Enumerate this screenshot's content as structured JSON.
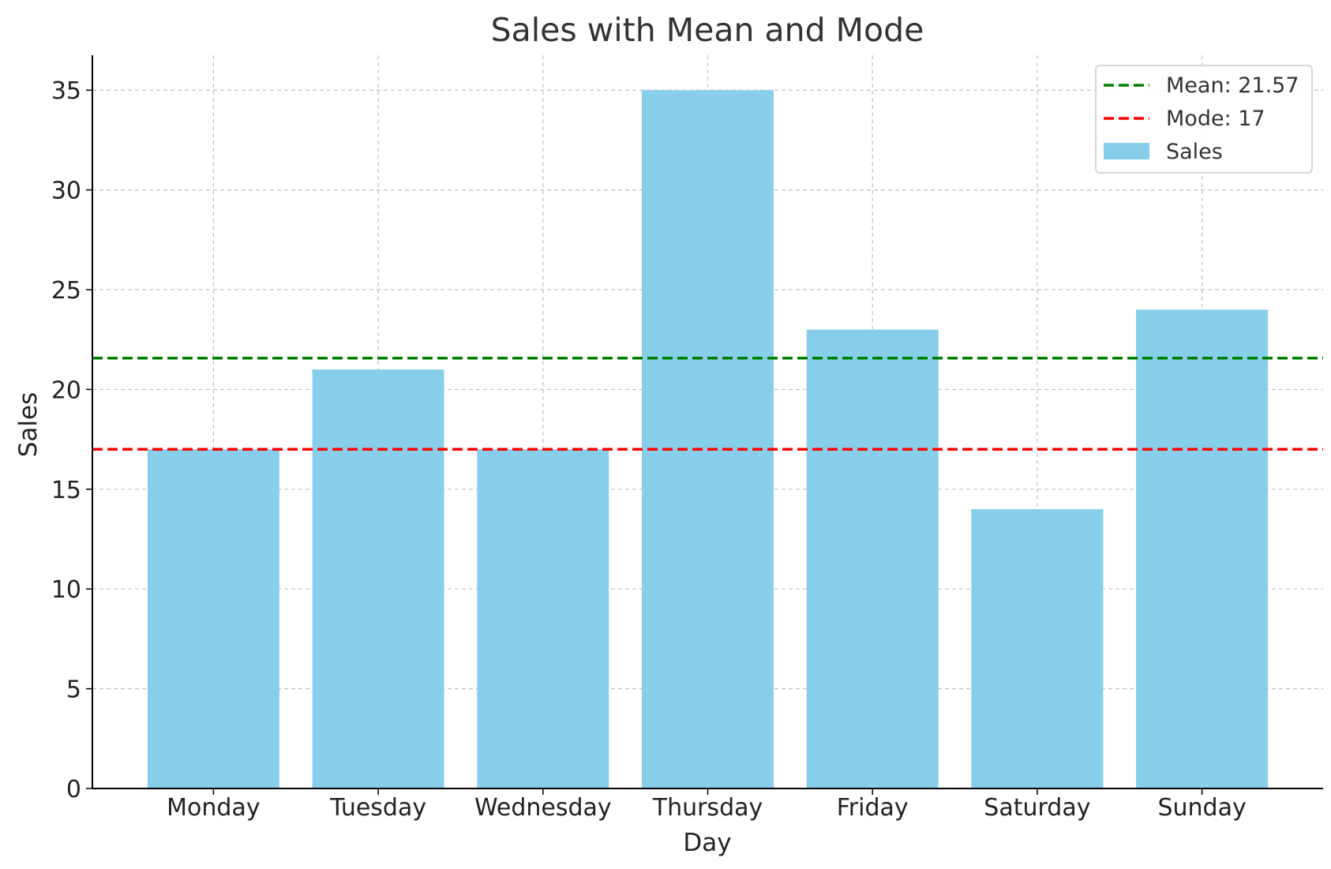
{
  "chart_data": {
    "type": "bar",
    "title": "Sales with Mean and Mode",
    "xlabel": "Day",
    "ylabel": "Sales",
    "categories": [
      "Monday",
      "Tuesday",
      "Wednesday",
      "Thursday",
      "Friday",
      "Saturday",
      "Sunday"
    ],
    "series": [
      {
        "name": "Sales",
        "values": [
          17,
          21,
          17,
          35,
          23,
          14,
          24
        ],
        "color": "#87CEEB"
      }
    ],
    "reference_lines": [
      {
        "label": "Mean: 21.57",
        "value": 21.57,
        "color": "#008000",
        "style": "dashed"
      },
      {
        "label": "Mode: 17",
        "value": 17,
        "color": "#ff0000",
        "style": "dashed"
      }
    ],
    "yticks": [
      0,
      5,
      10,
      15,
      20,
      25,
      30,
      35
    ],
    "ylim": [
      0,
      36.75
    ],
    "grid": true,
    "legend_position": "top-right"
  }
}
